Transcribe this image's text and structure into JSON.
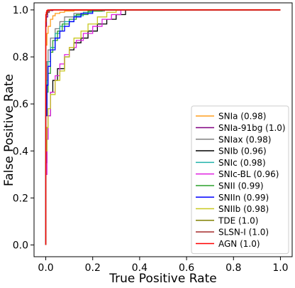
{
  "chart_data": {
    "type": "line",
    "xlabel": "True Positive Rate",
    "ylabel": "False Positive Rate",
    "xlim": [
      -0.05,
      1.05
    ],
    "ylim": [
      -0.05,
      1.03
    ],
    "x_ticks": [
      0.0,
      0.2,
      0.4,
      0.6,
      0.8,
      1.0
    ],
    "x_tick_labels": [
      "0.0",
      "0.2",
      "0.4",
      "0.6",
      "0.8",
      "1.0"
    ],
    "y_ticks": [
      0.0,
      0.2,
      0.4,
      0.6,
      0.8,
      1.0
    ],
    "y_tick_labels": [
      "0.0",
      "0.2",
      "0.4",
      "0.6",
      "0.8",
      "1.0"
    ],
    "grid": false,
    "legend_position": "lower-right",
    "series": [
      {
        "name": "SNIa (0.98)",
        "color": "#ff9e1f",
        "x": [
          0,
          0,
          0.005,
          0.01,
          0.02,
          0.03,
          0.04,
          0.06,
          0.08,
          0.12,
          0.18,
          1.0
        ],
        "y": [
          0,
          0.85,
          0.9,
          0.93,
          0.96,
          0.975,
          0.985,
          0.99,
          0.995,
          0.998,
          1.0,
          1.0
        ]
      },
      {
        "name": "SNIa-91bg (1.0)",
        "color": "#800080",
        "x": [
          0,
          0,
          0.003,
          0.008,
          0.015,
          0.03,
          1.0
        ],
        "y": [
          0,
          0.93,
          0.97,
          0.99,
          0.997,
          1.0,
          1.0
        ]
      },
      {
        "name": "SNIax (0.98)",
        "color": "#808080",
        "x": [
          0,
          0,
          0.005,
          0.01,
          0.02,
          0.04,
          0.06,
          0.08,
          0.12,
          0.18,
          0.25,
          1.0
        ],
        "y": [
          0,
          0.7,
          0.78,
          0.83,
          0.88,
          0.92,
          0.95,
          0.97,
          0.985,
          0.995,
          1.0,
          1.0
        ]
      },
      {
        "name": "SNIb (0.96)",
        "color": "#000000",
        "x": [
          0,
          0,
          0.005,
          0.01,
          0.02,
          0.03,
          0.05,
          0.08,
          0.1,
          0.12,
          0.15,
          0.18,
          0.22,
          0.26,
          0.3,
          0.34,
          1.0
        ],
        "y": [
          0,
          0.35,
          0.45,
          0.55,
          0.65,
          0.7,
          0.75,
          0.8,
          0.83,
          0.86,
          0.88,
          0.91,
          0.94,
          0.96,
          0.98,
          1.0,
          1.0
        ]
      },
      {
        "name": "SNIc (0.98)",
        "color": "#20b2aa",
        "x": [
          0,
          0,
          0.005,
          0.01,
          0.02,
          0.04,
          0.06,
          0.08,
          0.12,
          0.16,
          0.2,
          1.0
        ],
        "y": [
          0,
          0.6,
          0.7,
          0.78,
          0.84,
          0.9,
          0.93,
          0.95,
          0.975,
          0.99,
          1.0,
          1.0
        ]
      },
      {
        "name": "SNIc-BL (0.96)",
        "color": "#e020e0",
        "x": [
          0,
          0,
          0.005,
          0.01,
          0.02,
          0.04,
          0.06,
          0.08,
          0.1,
          0.13,
          0.16,
          0.2,
          0.24,
          0.28,
          0.32,
          1.0
        ],
        "y": [
          0,
          0.3,
          0.45,
          0.55,
          0.65,
          0.72,
          0.77,
          0.81,
          0.84,
          0.87,
          0.9,
          0.93,
          0.96,
          0.98,
          1.0,
          1.0
        ]
      },
      {
        "name": "SNII (0.99)",
        "color": "#2ca02c",
        "x": [
          0,
          0,
          0.005,
          0.01,
          0.02,
          0.03,
          0.05,
          0.07,
          0.1,
          0.13,
          0.18,
          0.24,
          1.0
        ],
        "y": [
          0,
          0.55,
          0.65,
          0.73,
          0.82,
          0.87,
          0.91,
          0.94,
          0.96,
          0.98,
          0.995,
          1.0,
          1.0
        ]
      },
      {
        "name": "SNIIn (0.99)",
        "color": "#0000ff",
        "x": [
          0,
          0,
          0.005,
          0.01,
          0.02,
          0.04,
          0.06,
          0.08,
          0.1,
          0.12,
          0.15,
          0.2,
          1.0
        ],
        "y": [
          0,
          0.55,
          0.68,
          0.76,
          0.83,
          0.88,
          0.91,
          0.93,
          0.95,
          0.97,
          0.985,
          1.0,
          1.0
        ]
      },
      {
        "name": "SNIIb (0.98)",
        "color": "#c8c820",
        "x": [
          0,
          0,
          0.005,
          0.01,
          0.02,
          0.04,
          0.06,
          0.08,
          0.1,
          0.12,
          0.15,
          0.18,
          0.22,
          0.26,
          0.3,
          1.0
        ],
        "y": [
          0,
          0.4,
          0.5,
          0.58,
          0.64,
          0.7,
          0.74,
          0.8,
          0.84,
          0.88,
          0.91,
          0.94,
          0.97,
          0.99,
          1.0,
          1.0
        ]
      },
      {
        "name": "TDE (1.0)",
        "color": "#808000",
        "x": [
          0,
          0,
          0.002,
          0.005,
          0.01,
          0.02,
          1.0
        ],
        "y": [
          0,
          0.95,
          0.98,
          0.99,
          0.997,
          1.0,
          1.0
        ]
      },
      {
        "name": "SLSN-I (1.0)",
        "color": "#a52a2a",
        "x": [
          0,
          0,
          0.002,
          0.005,
          0.01,
          0.02,
          1.0
        ],
        "y": [
          0,
          0.96,
          0.985,
          0.995,
          0.999,
          1.0,
          1.0
        ]
      },
      {
        "name": "AGN (1.0)",
        "color": "#ff0000",
        "x": [
          0,
          0,
          0.002,
          0.004,
          0.008,
          1.0
        ],
        "y": [
          0,
          0.98,
          0.99,
          0.997,
          1.0,
          1.0
        ]
      }
    ]
  }
}
